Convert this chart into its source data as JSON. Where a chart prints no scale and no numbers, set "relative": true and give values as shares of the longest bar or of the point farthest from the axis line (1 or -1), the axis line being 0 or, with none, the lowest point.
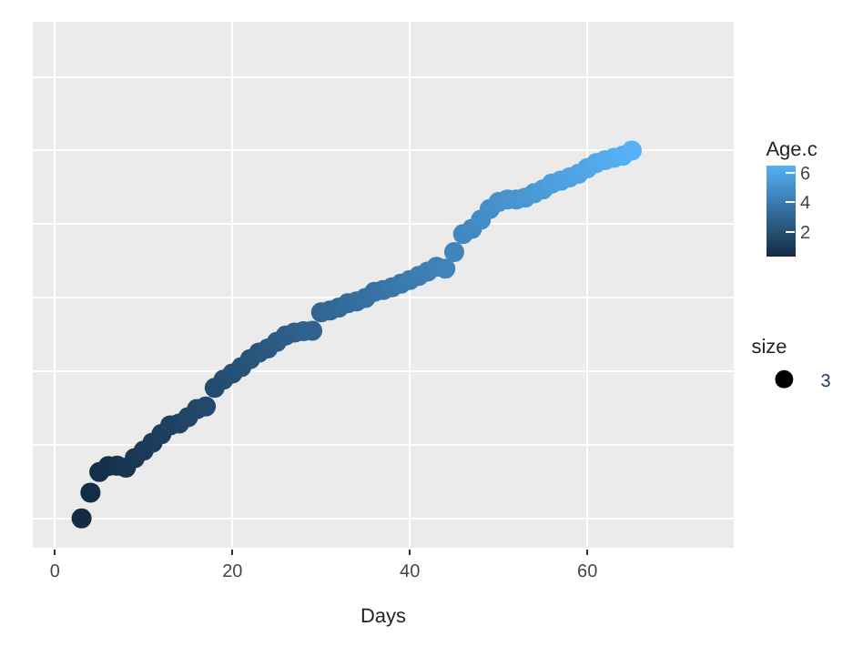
{
  "chart_data": {
    "type": "scatter",
    "xlabel": "Days",
    "clabel": "Age.c",
    "legend_title": "size",
    "relative": true,
    "x": [
      3,
      4,
      5,
      6,
      7,
      8,
      9,
      10,
      11,
      12,
      13,
      14,
      15,
      16,
      17,
      18,
      19,
      20,
      21,
      22,
      23,
      24,
      25,
      26,
      27,
      28,
      29,
      30,
      31,
      32,
      33,
      34,
      35,
      36,
      37,
      38,
      39,
      40,
      41,
      42,
      43,
      44,
      45,
      46,
      47,
      48,
      49,
      50,
      51,
      52,
      53,
      54,
      55,
      56,
      57,
      58,
      59,
      60,
      61,
      62,
      63,
      64,
      65
    ],
    "series": [
      {
        "name": "3",
        "values": [
          0,
          0.07,
          0.126,
          0.142,
          0.143,
          0.138,
          0.164,
          0.184,
          0.206,
          0.229,
          0.253,
          0.258,
          0.275,
          0.297,
          0.304,
          0.355,
          0.377,
          0.394,
          0.411,
          0.433,
          0.451,
          0.462,
          0.48,
          0.497,
          0.505,
          0.509,
          0.51,
          0.56,
          0.565,
          0.573,
          0.585,
          0.59,
          0.599,
          0.616,
          0.621,
          0.628,
          0.638,
          0.648,
          0.659,
          0.671,
          0.684,
          0.679,
          0.724,
          0.773,
          0.787,
          0.812,
          0.841,
          0.86,
          0.867,
          0.867,
          0.872,
          0.884,
          0.894,
          0.91,
          0.918,
          0.927,
          0.937,
          0.952,
          0.966,
          0.974,
          0.98,
          0.986,
          1
        ],
        "cvalues": [
          0.3,
          0.4,
          0.5,
          0.6,
          0.7,
          0.8,
          0.9,
          1.0,
          1.1,
          1.2,
          1.3,
          1.4,
          1.5,
          1.6,
          1.7,
          1.8,
          1.9,
          2.0,
          2.1,
          2.2,
          2.3,
          2.4,
          2.5,
          2.6,
          2.7,
          2.8,
          2.9,
          3.0,
          3.1,
          3.2,
          3.3,
          3.4,
          3.5,
          3.6,
          3.7,
          3.8,
          3.9,
          4.0,
          4.1,
          4.2,
          4.3,
          4.4,
          4.5,
          4.6,
          4.7,
          4.8,
          4.9,
          5.0,
          5.1,
          5.2,
          5.3,
          5.4,
          5.5,
          5.6,
          5.7,
          5.8,
          5.9,
          6.0,
          6.1,
          6.2,
          6.3,
          6.4,
          6.5
        ]
      }
    ],
    "colors": [
      "#132b43",
      "#56b1f7"
    ],
    "clim": [
      0.3,
      6.5
    ],
    "cticks": [
      2,
      4,
      6
    ],
    "xlim": [
      -2.5,
      76.5
    ],
    "xticks": [
      0,
      20,
      40,
      60
    ],
    "grid": true,
    "legend": "right",
    "marker": "circle"
  }
}
